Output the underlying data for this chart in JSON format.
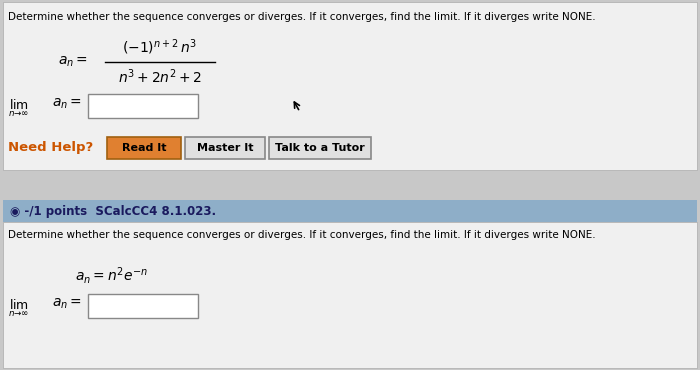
{
  "bg_color": "#c8c8c8",
  "panel1_bg": "#f0f0f0",
  "panel2_bg": "#f0f0f0",
  "banner_bg": "#8eaec8",
  "title_text": "Determine whether the sequence converges or diverges. If it converges, find the limit. If it diverges write NONE.",
  "title2_text": "Determine whether the sequence converges or diverges. If it converges, find the limit. If it diverges write NONE.",
  "need_help_color": "#cc5500",
  "button_read_bg": "#e08030",
  "button_read_border": "#a06010",
  "button_gray_bg": "#e0e0e0",
  "button_gray_border": "#888888",
  "banner_text": "◉ -/1 points  SCalcCC4 8.1.023.",
  "banner_text_color": "#1a1a5e",
  "input_box_color": "#ffffff",
  "input_box_border": "#888888"
}
